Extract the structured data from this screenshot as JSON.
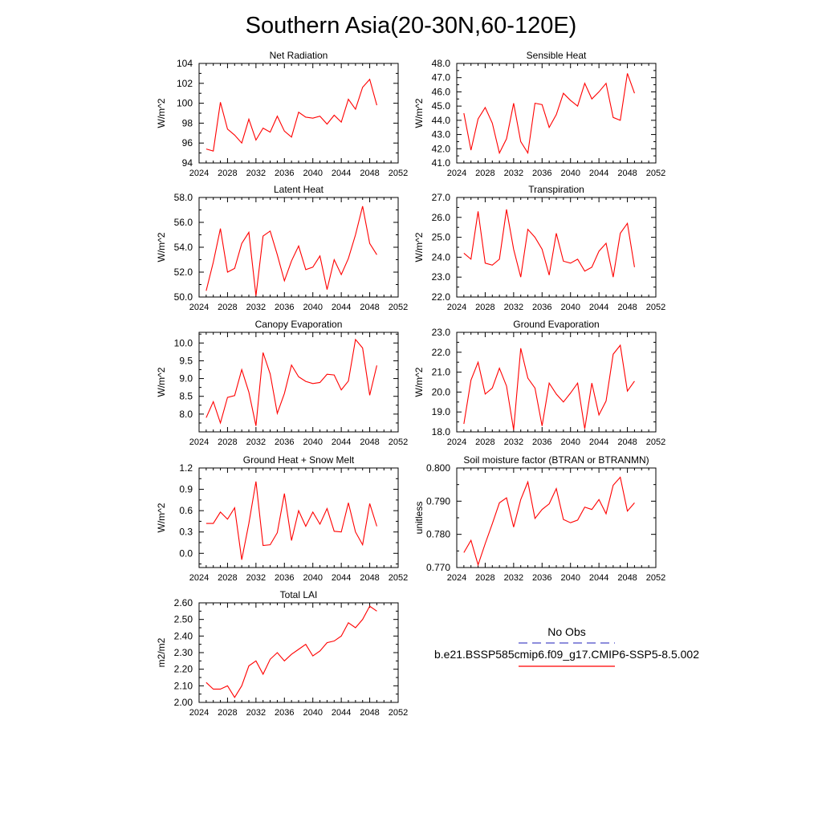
{
  "figure_title": "Southern Asia(20-30N,60-120E)",
  "legend": {
    "entries": [
      {
        "label": "No Obs",
        "color": "#4b4bc8",
        "dash": true
      },
      {
        "label": "b.e21.BSSP585cmip6.f09_g17.CMIP6-SSP5-8.5.002",
        "color": "#ff0000",
        "dash": false
      }
    ]
  },
  "chart_data": [
    {
      "type": "line",
      "title": "Net Radiation",
      "ylabel": "W/m^2",
      "xlim": [
        2024,
        2052
      ],
      "xticks": [
        "2024",
        "2028",
        "2032",
        "2036",
        "2040",
        "2044",
        "2048",
        "2052"
      ],
      "ylim": [
        94,
        104
      ],
      "yticks": [
        "94",
        "96",
        "98",
        "100",
        "102",
        "104"
      ],
      "x": [
        2025,
        2026,
        2027,
        2028,
        2029,
        2030,
        2031,
        2032,
        2033,
        2034,
        2035,
        2036,
        2037,
        2038,
        2039,
        2040,
        2041,
        2042,
        2043,
        2044,
        2045,
        2046,
        2047,
        2048,
        2049
      ],
      "series": [
        {
          "color": "#ff0000",
          "values": [
            95.4,
            95.2,
            100.1,
            97.4,
            96.8,
            96.0,
            98.4,
            96.3,
            97.5,
            97.1,
            98.7,
            97.2,
            96.6,
            99.1,
            98.6,
            98.5,
            98.7,
            97.9,
            98.8,
            98.1,
            100.4,
            99.4,
            101.6,
            102.4,
            99.8
          ]
        }
      ]
    },
    {
      "type": "line",
      "title": "Sensible Heat",
      "ylabel": "W/m^2",
      "xlim": [
        2024,
        2052
      ],
      "xticks": [
        "2024",
        "2028",
        "2032",
        "2036",
        "2040",
        "2044",
        "2048",
        "2052"
      ],
      "ylim": [
        41,
        48
      ],
      "yticks": [
        "41.0",
        "42.0",
        "43.0",
        "44.0",
        "45.0",
        "46.0",
        "47.0",
        "48.0"
      ],
      "x": [
        2025,
        2026,
        2027,
        2028,
        2029,
        2030,
        2031,
        2032,
        2033,
        2034,
        2035,
        2036,
        2037,
        2038,
        2039,
        2040,
        2041,
        2042,
        2043,
        2044,
        2045,
        2046,
        2047,
        2048,
        2049
      ],
      "series": [
        {
          "color": "#ff0000",
          "values": [
            44.5,
            41.9,
            44.1,
            44.9,
            43.8,
            41.7,
            42.7,
            45.2,
            42.5,
            41.7,
            45.2,
            45.1,
            43.5,
            44.4,
            45.9,
            45.4,
            45.0,
            46.6,
            45.5,
            46.0,
            46.6,
            44.2,
            44.0,
            47.3,
            45.9
          ]
        }
      ]
    },
    {
      "type": "line",
      "title": "Latent Heat",
      "ylabel": "W/m^2",
      "xlim": [
        2024,
        2052
      ],
      "xticks": [
        "2024",
        "2028",
        "2032",
        "2036",
        "2040",
        "2044",
        "2048",
        "2052"
      ],
      "ylim": [
        50,
        58
      ],
      "yticks": [
        "50.0",
        "52.0",
        "54.0",
        "56.0",
        "58.0"
      ],
      "x": [
        2025,
        2026,
        2027,
        2028,
        2029,
        2030,
        2031,
        2032,
        2033,
        2034,
        2035,
        2036,
        2037,
        2038,
        2039,
        2040,
        2041,
        2042,
        2043,
        2044,
        2045,
        2046,
        2047,
        2048,
        2049
      ],
      "series": [
        {
          "color": "#ff0000",
          "values": [
            50.5,
            52.8,
            55.5,
            52.0,
            52.3,
            54.3,
            55.2,
            50.1,
            54.9,
            55.3,
            53.4,
            51.3,
            52.9,
            54.1,
            52.2,
            52.4,
            53.3,
            50.6,
            53.0,
            51.8,
            53.1,
            55.0,
            57.3,
            54.3,
            53.4
          ]
        }
      ]
    },
    {
      "type": "line",
      "title": "Transpiration",
      "ylabel": "W/m^2",
      "xlim": [
        2024,
        2052
      ],
      "xticks": [
        "2024",
        "2028",
        "2032",
        "2036",
        "2040",
        "2044",
        "2048",
        "2052"
      ],
      "ylim": [
        22,
        27
      ],
      "yticks": [
        "22.0",
        "23.0",
        "24.0",
        "25.0",
        "26.0",
        "27.0"
      ],
      "x": [
        2025,
        2026,
        2027,
        2028,
        2029,
        2030,
        2031,
        2032,
        2033,
        2034,
        2035,
        2036,
        2037,
        2038,
        2039,
        2040,
        2041,
        2042,
        2043,
        2044,
        2045,
        2046,
        2047,
        2048,
        2049
      ],
      "series": [
        {
          "color": "#ff0000",
          "values": [
            24.2,
            23.9,
            26.3,
            23.7,
            23.6,
            23.9,
            26.4,
            24.4,
            23.0,
            25.4,
            25.0,
            24.4,
            23.1,
            25.2,
            23.8,
            23.7,
            23.9,
            23.3,
            23.5,
            24.3,
            24.7,
            23.0,
            25.2,
            25.7,
            23.5
          ]
        }
      ]
    },
    {
      "type": "line",
      "title": "Canopy Evaporation",
      "ylabel": "W/m^2",
      "xlim": [
        2024,
        2052
      ],
      "xticks": [
        "2024",
        "2028",
        "2032",
        "2036",
        "2040",
        "2044",
        "2048",
        "2052"
      ],
      "ylim": [
        7.5,
        10.3
      ],
      "yticks": [
        "8.0",
        "8.5",
        "9.0",
        "9.5",
        "10.0"
      ],
      "ytick_values": [
        8.0,
        8.5,
        9.0,
        9.5,
        10.0
      ],
      "x": [
        2025,
        2026,
        2027,
        2028,
        2029,
        2030,
        2031,
        2032,
        2033,
        2034,
        2035,
        2036,
        2037,
        2038,
        2039,
        2040,
        2041,
        2042,
        2043,
        2044,
        2045,
        2046,
        2047,
        2048,
        2049
      ],
      "series": [
        {
          "color": "#ff0000",
          "values": [
            7.9,
            8.35,
            7.75,
            8.47,
            8.52,
            9.25,
            8.62,
            7.67,
            9.73,
            9.13,
            8.02,
            8.58,
            9.38,
            9.05,
            8.92,
            8.86,
            8.89,
            9.12,
            9.1,
            8.68,
            8.93,
            10.1,
            9.86,
            8.53,
            9.37
          ]
        }
      ]
    },
    {
      "type": "line",
      "title": "Ground Evaporation",
      "ylabel": "W/m^2",
      "xlim": [
        2024,
        2052
      ],
      "xticks": [
        "2024",
        "2028",
        "2032",
        "2036",
        "2040",
        "2044",
        "2048",
        "2052"
      ],
      "ylim": [
        18,
        23
      ],
      "yticks": [
        "18.0",
        "19.0",
        "20.0",
        "21.0",
        "22.0",
        "23.0"
      ],
      "x": [
        2025,
        2026,
        2027,
        2028,
        2029,
        2030,
        2031,
        2032,
        2033,
        2034,
        2035,
        2036,
        2037,
        2038,
        2039,
        2040,
        2041,
        2042,
        2043,
        2044,
        2045,
        2046,
        2047,
        2048,
        2049
      ],
      "series": [
        {
          "color": "#ff0000",
          "values": [
            18.4,
            20.6,
            21.5,
            19.9,
            20.2,
            21.2,
            20.3,
            18.1,
            22.2,
            20.7,
            20.2,
            18.3,
            20.45,
            19.9,
            19.5,
            19.95,
            20.45,
            18.15,
            20.45,
            18.85,
            19.55,
            21.9,
            22.35,
            20.05,
            20.55
          ]
        }
      ]
    },
    {
      "type": "line",
      "title": "Ground Heat + Snow Melt",
      "ylabel": "W/m^2",
      "xlim": [
        2024,
        2052
      ],
      "xticks": [
        "2024",
        "2028",
        "2032",
        "2036",
        "2040",
        "2044",
        "2048",
        "2052"
      ],
      "ylim": [
        -0.2,
        1.2
      ],
      "yticks": [
        "0.0",
        "0.3",
        "0.6",
        "0.9",
        "1.2"
      ],
      "ytick_values": [
        0.0,
        0.3,
        0.6,
        0.9,
        1.2
      ],
      "x": [
        2025,
        2026,
        2027,
        2028,
        2029,
        2030,
        2031,
        2032,
        2033,
        2034,
        2035,
        2036,
        2037,
        2038,
        2039,
        2040,
        2041,
        2042,
        2043,
        2044,
        2045,
        2046,
        2047,
        2048,
        2049
      ],
      "series": [
        {
          "color": "#ff0000",
          "values": [
            0.42,
            0.42,
            0.58,
            0.48,
            0.64,
            -0.09,
            0.42,
            1.01,
            0.11,
            0.12,
            0.29,
            0.84,
            0.18,
            0.6,
            0.38,
            0.58,
            0.41,
            0.63,
            0.31,
            0.3,
            0.71,
            0.3,
            0.12,
            0.7,
            0.38
          ]
        }
      ]
    },
    {
      "type": "line",
      "title": "Soil moisture factor (BTRAN or BTRANMN)",
      "ylabel": "unitless",
      "xlim": [
        2024,
        2052
      ],
      "xticks": [
        "2024",
        "2028",
        "2032",
        "2036",
        "2040",
        "2044",
        "2048",
        "2052"
      ],
      "ylim": [
        0.77,
        0.8
      ],
      "yticks": [
        "0.770",
        "0.780",
        "0.790",
        "0.800"
      ],
      "ytick_values": [
        0.77,
        0.78,
        0.79,
        0.8
      ],
      "x": [
        2025,
        2026,
        2027,
        2028,
        2029,
        2030,
        2031,
        2032,
        2033,
        2034,
        2035,
        2036,
        2037,
        2038,
        2039,
        2040,
        2041,
        2042,
        2043,
        2044,
        2045,
        2046,
        2047,
        2048,
        2049
      ],
      "series": [
        {
          "color": "#ff0000",
          "values": [
            0.7745,
            0.7782,
            0.7708,
            0.7772,
            0.7832,
            0.7895,
            0.791,
            0.7822,
            0.7905,
            0.7958,
            0.7848,
            0.7875,
            0.7892,
            0.7938,
            0.7845,
            0.7835,
            0.7843,
            0.7882,
            0.7875,
            0.7905,
            0.7862,
            0.7948,
            0.7972,
            0.787,
            0.7895
          ]
        }
      ]
    },
    {
      "type": "line",
      "title": "Total LAI",
      "ylabel": "m2/m2",
      "xlim": [
        2024,
        2052
      ],
      "xticks": [
        "2024",
        "2028",
        "2032",
        "2036",
        "2040",
        "2044",
        "2048",
        "2052"
      ],
      "ylim": [
        2.0,
        2.6
      ],
      "yticks": [
        "2.00",
        "2.10",
        "2.20",
        "2.30",
        "2.40",
        "2.50",
        "2.60"
      ],
      "ytick_values": [
        2.0,
        2.1,
        2.2,
        2.3,
        2.4,
        2.5,
        2.6
      ],
      "x": [
        2025,
        2026,
        2027,
        2028,
        2029,
        2030,
        2031,
        2032,
        2033,
        2034,
        2035,
        2036,
        2037,
        2038,
        2039,
        2040,
        2041,
        2042,
        2043,
        2044,
        2045,
        2046,
        2047,
        2048,
        2049
      ],
      "series": [
        {
          "color": "#ff0000",
          "values": [
            2.12,
            2.08,
            2.08,
            2.1,
            2.03,
            2.1,
            2.22,
            2.25,
            2.17,
            2.26,
            2.3,
            2.25,
            2.29,
            2.32,
            2.35,
            2.28,
            2.31,
            2.36,
            2.37,
            2.4,
            2.48,
            2.45,
            2.5,
            2.58,
            2.55
          ]
        }
      ]
    }
  ]
}
